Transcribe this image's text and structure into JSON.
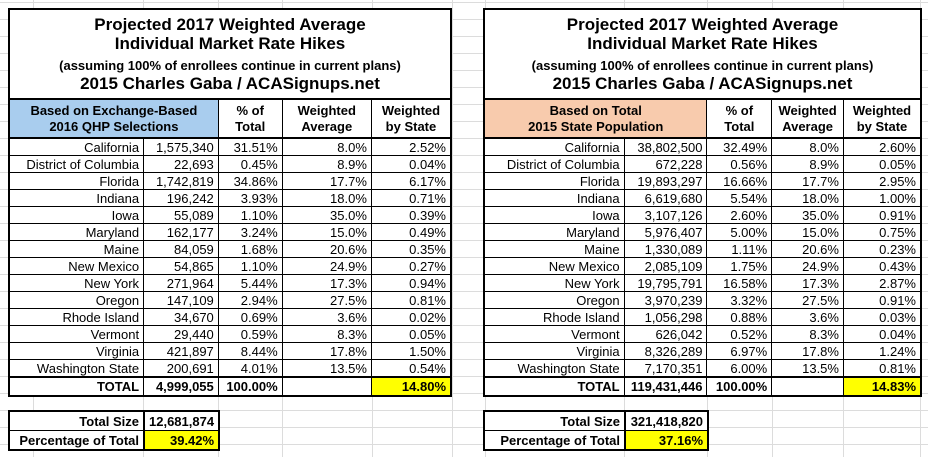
{
  "title": {
    "line1": "Projected 2017 Weighted Average",
    "line2": "Individual Market Rate Hikes",
    "line3": "(assuming 100% of enrollees continue in current plans)",
    "line4": "2015 Charles Gaba / ACASignups.net"
  },
  "colors": {
    "left_header_bg": "#A9CDEE",
    "right_header_bg": "#F8CBAD",
    "highlight": "#FFFF00",
    "border": "#000000",
    "gridline": "#DCDCDC"
  },
  "chart_data": [
    {
      "type": "table",
      "title": "Projected 2017 Weighted Average Individual Market Rate Hikes — Based on Exchange-Based 2016 QHP Selections",
      "header_label": "Based on Exchange-Based\n2016 QHP Selections",
      "col_headers": [
        "% of\nTotal",
        "Weighted\nAverage",
        "Weighted\nby State"
      ],
      "rows": [
        {
          "state": "California",
          "value": "1,575,340",
          "pct_total": "31.51%",
          "wtd_avg": "8.0%",
          "wtd_state": "2.52%"
        },
        {
          "state": "District of Columbia",
          "value": "22,693",
          "pct_total": "0.45%",
          "wtd_avg": "8.9%",
          "wtd_state": "0.04%"
        },
        {
          "state": "Florida",
          "value": "1,742,819",
          "pct_total": "34.86%",
          "wtd_avg": "17.7%",
          "wtd_state": "6.17%"
        },
        {
          "state": "Indiana",
          "value": "196,242",
          "pct_total": "3.93%",
          "wtd_avg": "18.0%",
          "wtd_state": "0.71%"
        },
        {
          "state": "Iowa",
          "value": "55,089",
          "pct_total": "1.10%",
          "wtd_avg": "35.0%",
          "wtd_state": "0.39%"
        },
        {
          "state": "Maryland",
          "value": "162,177",
          "pct_total": "3.24%",
          "wtd_avg": "15.0%",
          "wtd_state": "0.49%"
        },
        {
          "state": "Maine",
          "value": "84,059",
          "pct_total": "1.68%",
          "wtd_avg": "20.6%",
          "wtd_state": "0.35%"
        },
        {
          "state": "New Mexico",
          "value": "54,865",
          "pct_total": "1.10%",
          "wtd_avg": "24.9%",
          "wtd_state": "0.27%"
        },
        {
          "state": "New York",
          "value": "271,964",
          "pct_total": "5.44%",
          "wtd_avg": "17.3%",
          "wtd_state": "0.94%"
        },
        {
          "state": "Oregon",
          "value": "147,109",
          "pct_total": "2.94%",
          "wtd_avg": "27.5%",
          "wtd_state": "0.81%"
        },
        {
          "state": "Rhode Island",
          "value": "34,670",
          "pct_total": "0.69%",
          "wtd_avg": "3.6%",
          "wtd_state": "0.02%"
        },
        {
          "state": "Vermont",
          "value": "29,440",
          "pct_total": "0.59%",
          "wtd_avg": "8.3%",
          "wtd_state": "0.05%"
        },
        {
          "state": "Virginia",
          "value": "421,897",
          "pct_total": "8.44%",
          "wtd_avg": "17.8%",
          "wtd_state": "1.50%"
        },
        {
          "state": "Washington State",
          "value": "200,691",
          "pct_total": "4.01%",
          "wtd_avg": "13.5%",
          "wtd_state": "0.54%"
        }
      ],
      "total": {
        "label": "TOTAL",
        "value": "4,999,055",
        "pct_total": "100.00%",
        "wtd_avg": "",
        "wtd_state": "14.80%"
      },
      "summary": {
        "size_label": "Total Size",
        "size_value": "12,681,874",
        "pct_label": "Percentage of Total",
        "pct_value": "39.42%"
      }
    },
    {
      "type": "table",
      "title": "Projected 2017 Weighted Average Individual Market Rate Hikes — Based on Total 2015 State Population",
      "header_label": "Based on Total\n2015 State Population",
      "col_headers": [
        "% of\nTotal",
        "Weighted\nAverage",
        "Weighted\nby State"
      ],
      "rows": [
        {
          "state": "California",
          "value": "38,802,500",
          "pct_total": "32.49%",
          "wtd_avg": "8.0%",
          "wtd_state": "2.60%"
        },
        {
          "state": "District of Columbia",
          "value": "672,228",
          "pct_total": "0.56%",
          "wtd_avg": "8.9%",
          "wtd_state": "0.05%"
        },
        {
          "state": "Florida",
          "value": "19,893,297",
          "pct_total": "16.66%",
          "wtd_avg": "17.7%",
          "wtd_state": "2.95%"
        },
        {
          "state": "Indiana",
          "value": "6,619,680",
          "pct_total": "5.54%",
          "wtd_avg": "18.0%",
          "wtd_state": "1.00%"
        },
        {
          "state": "Iowa",
          "value": "3,107,126",
          "pct_total": "2.60%",
          "wtd_avg": "35.0%",
          "wtd_state": "0.91%"
        },
        {
          "state": "Maryland",
          "value": "5,976,407",
          "pct_total": "5.00%",
          "wtd_avg": "15.0%",
          "wtd_state": "0.75%"
        },
        {
          "state": "Maine",
          "value": "1,330,089",
          "pct_total": "1.11%",
          "wtd_avg": "20.6%",
          "wtd_state": "0.23%"
        },
        {
          "state": "New Mexico",
          "value": "2,085,109",
          "pct_total": "1.75%",
          "wtd_avg": "24.9%",
          "wtd_state": "0.43%"
        },
        {
          "state": "New York",
          "value": "19,795,791",
          "pct_total": "16.58%",
          "wtd_avg": "17.3%",
          "wtd_state": "2.87%"
        },
        {
          "state": "Oregon",
          "value": "3,970,239",
          "pct_total": "3.32%",
          "wtd_avg": "27.5%",
          "wtd_state": "0.91%"
        },
        {
          "state": "Rhode Island",
          "value": "1,056,298",
          "pct_total": "0.88%",
          "wtd_avg": "3.6%",
          "wtd_state": "0.03%"
        },
        {
          "state": "Vermont",
          "value": "626,042",
          "pct_total": "0.52%",
          "wtd_avg": "8.3%",
          "wtd_state": "0.04%"
        },
        {
          "state": "Virginia",
          "value": "8,326,289",
          "pct_total": "6.97%",
          "wtd_avg": "17.8%",
          "wtd_state": "1.24%"
        },
        {
          "state": "Washington State",
          "value": "7,170,351",
          "pct_total": "6.00%",
          "wtd_avg": "13.5%",
          "wtd_state": "0.81%"
        }
      ],
      "total": {
        "label": "TOTAL",
        "value": "119,431,446",
        "pct_total": "100.00%",
        "wtd_avg": "",
        "wtd_state": "14.83%"
      },
      "summary": {
        "size_label": "Total Size",
        "size_value": "321,418,820",
        "pct_label": "Percentage of Total",
        "pct_value": "37.16%"
      }
    }
  ]
}
